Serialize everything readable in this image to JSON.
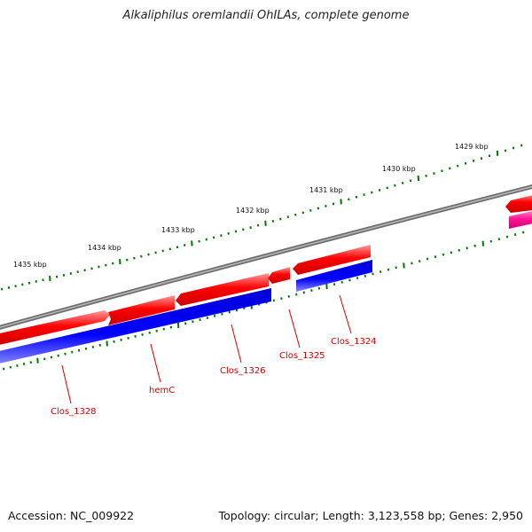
{
  "title": "Alkaliphilus oremlandii OhILAs, complete genome",
  "footer": {
    "accession": "Accession: NC_009922",
    "summary": "Topology: circular; Length: 3,123,558 bp; Genes: 2,950"
  },
  "scale": {
    "unit": "kbp",
    "labels": [
      "1435 kbp",
      "1434 kbp",
      "1433 kbp",
      "1432 kbp",
      "1431 kbp",
      "1430 kbp",
      "1429 kbp"
    ]
  },
  "tracks": {
    "backbone_color": "#808080",
    "forward_cds_color": "#ff0000",
    "reverse_gene_color": "#0000ff",
    "other_feature_color": "#ff1493",
    "tick_color": "#007700"
  },
  "genes": [
    {
      "label": "Clos_1328"
    },
    {
      "label": "hemC"
    },
    {
      "label": "Clos_1326"
    },
    {
      "label": "Clos_1325"
    },
    {
      "label": "Clos_1324"
    }
  ]
}
